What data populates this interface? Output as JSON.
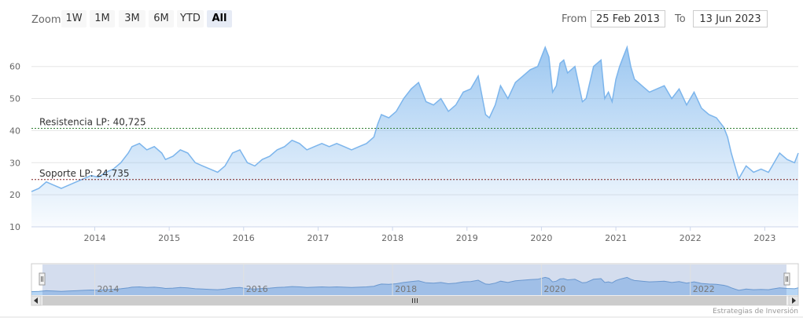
{
  "toolbar": {
    "zoom_label": "Zoom",
    "zoom_buttons": [
      "1W",
      "1M",
      "3M",
      "6M",
      "YTD",
      "All"
    ],
    "active_zoom": "All",
    "from_label": "From",
    "from_value": "25 Feb 2013",
    "to_label": "To",
    "to_value": "13 Jun 2023"
  },
  "credit": "Estrategias de Inversión",
  "colors": {
    "series": "#7cb5ec",
    "resistance": "#2e7d32",
    "support": "#7b1f1f"
  },
  "chart_data": {
    "type": "area",
    "title": "",
    "xlabel": "",
    "ylabel": "",
    "xlim": [
      2013.15,
      2023.45
    ],
    "ylim": [
      10,
      68
    ],
    "yticks": [
      10,
      20,
      30,
      40,
      50,
      60
    ],
    "xticks": [
      2014,
      2015,
      2016,
      2017,
      2018,
      2019,
      2020,
      2021,
      2022,
      2023
    ],
    "grid": true,
    "legend": false,
    "series": [
      {
        "x": [
          2013.15,
          2013.25,
          2013.35,
          2013.45,
          2013.55,
          2013.65,
          2013.75,
          2013.85,
          2013.95,
          2014.05,
          2014.15,
          2014.25,
          2014.35,
          2014.45,
          2014.5,
          2014.6,
          2014.7,
          2014.8,
          2014.9,
          2014.95,
          2015.05,
          2015.15,
          2015.25,
          2015.35,
          2015.45,
          2015.55,
          2015.65,
          2015.75,
          2015.85,
          2015.95,
          2016.05,
          2016.15,
          2016.25,
          2016.35,
          2016.45,
          2016.55,
          2016.65,
          2016.75,
          2016.85,
          2016.95,
          2017.05,
          2017.15,
          2017.25,
          2017.35,
          2017.45,
          2017.55,
          2017.65,
          2017.75,
          2017.8,
          2017.85,
          2017.95,
          2018.05,
          2018.15,
          2018.25,
          2018.35,
          2018.45,
          2018.55,
          2018.65,
          2018.75,
          2018.85,
          2018.95,
          2019.05,
          2019.15,
          2019.25,
          2019.3,
          2019.38,
          2019.45,
          2019.55,
          2019.65,
          2019.75,
          2019.85,
          2019.95,
          2020.05,
          2020.1,
          2020.15,
          2020.2,
          2020.25,
          2020.3,
          2020.35,
          2020.45,
          2020.55,
          2020.6,
          2020.7,
          2020.8,
          2020.85,
          2020.9,
          2020.95,
          2021.0,
          2021.05,
          2021.1,
          2021.15,
          2021.2,
          2021.25,
          2021.3,
          2021.35,
          2021.45,
          2021.55,
          2021.65,
          2021.75,
          2021.85,
          2021.95,
          2022.05,
          2022.15,
          2022.25,
          2022.35,
          2022.45,
          2022.5,
          2022.55,
          2022.6,
          2022.65,
          2022.7,
          2022.75,
          2022.85,
          2022.95,
          2023.05,
          2023.1,
          2023.2,
          2023.3,
          2023.4,
          2023.45
        ],
        "values": [
          21,
          22,
          24,
          23,
          22,
          23,
          24,
          25,
          26,
          25.5,
          27,
          28,
          30,
          33,
          35,
          36,
          34,
          35,
          33,
          31,
          32,
          34,
          33,
          30,
          29,
          28,
          27,
          29,
          33,
          34,
          30,
          29,
          31,
          32,
          34,
          35,
          37,
          36,
          34,
          35,
          36,
          35,
          36,
          35,
          34,
          35,
          36,
          38,
          42,
          45,
          44,
          46,
          50,
          53,
          55,
          49,
          48,
          50,
          46,
          48,
          52,
          53,
          57,
          45,
          44,
          48,
          54,
          50,
          55,
          57,
          59,
          60,
          66,
          63,
          52,
          54,
          61,
          62,
          58,
          60,
          49,
          50,
          60,
          62,
          50,
          52,
          49,
          56,
          60,
          63,
          66,
          60,
          56,
          55,
          54,
          52,
          53,
          54,
          50,
          53,
          48,
          52,
          47,
          45,
          44,
          41,
          38,
          33,
          29,
          25,
          27,
          29,
          27,
          28,
          27,
          29,
          33,
          31,
          30,
          33
        ]
      }
    ],
    "annotations": [
      {
        "label": "Resistencia LP: 40,725",
        "value": 40.725,
        "color": "#2e7d32"
      },
      {
        "label": "Soporte LP: 24,735",
        "value": 24.735,
        "color": "#7b1f1f"
      }
    ],
    "navigator": {
      "xticks": [
        2014,
        2016,
        2018,
        2020,
        2022
      ]
    }
  }
}
